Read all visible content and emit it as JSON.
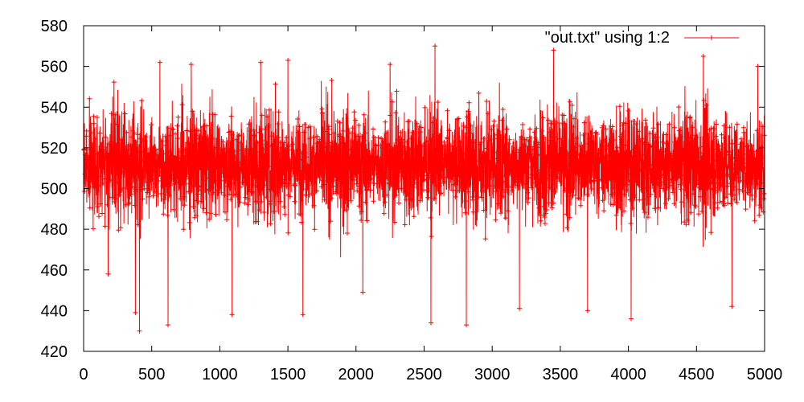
{
  "chart_data": {
    "type": "line",
    "title": "",
    "xlabel": "",
    "ylabel": "",
    "xlim": [
      0,
      5000
    ],
    "ylim": [
      420,
      580
    ],
    "x_ticks": [
      "0",
      "500",
      "1000",
      "1500",
      "2000",
      "2500",
      "3000",
      "3500",
      "4000",
      "4500",
      "5000"
    ],
    "y_ticks": [
      "420",
      "440",
      "460",
      "480",
      "500",
      "520",
      "540",
      "560",
      "580"
    ],
    "grid": false,
    "legend_position": "top-right",
    "point_marker": "plus",
    "series": [
      {
        "name": "\"out.txt\" using 1:2",
        "color": "#ff0000",
        "x_start": 1,
        "x_end": 5000,
        "n_points": 5000,
        "baseline": 512,
        "typical_range": [
          480,
          545
        ],
        "extremes": [
          {
            "x": 180,
            "y": 458
          },
          {
            "x": 380,
            "y": 439
          },
          {
            "x": 410,
            "y": 430
          },
          {
            "x": 560,
            "y": 562
          },
          {
            "x": 620,
            "y": 433
          },
          {
            "x": 790,
            "y": 561
          },
          {
            "x": 1090,
            "y": 438
          },
          {
            "x": 1300,
            "y": 562
          },
          {
            "x": 1500,
            "y": 563
          },
          {
            "x": 1610,
            "y": 438
          },
          {
            "x": 2050,
            "y": 449
          },
          {
            "x": 2250,
            "y": 561
          },
          {
            "x": 2550,
            "y": 434
          },
          {
            "x": 2580,
            "y": 570
          },
          {
            "x": 2810,
            "y": 433
          },
          {
            "x": 3200,
            "y": 441
          },
          {
            "x": 3450,
            "y": 568
          },
          {
            "x": 3700,
            "y": 440
          },
          {
            "x": 4020,
            "y": 436
          },
          {
            "x": 4550,
            "y": 565
          },
          {
            "x": 4760,
            "y": 442
          },
          {
            "x": 4950,
            "y": 560
          }
        ]
      }
    ]
  }
}
